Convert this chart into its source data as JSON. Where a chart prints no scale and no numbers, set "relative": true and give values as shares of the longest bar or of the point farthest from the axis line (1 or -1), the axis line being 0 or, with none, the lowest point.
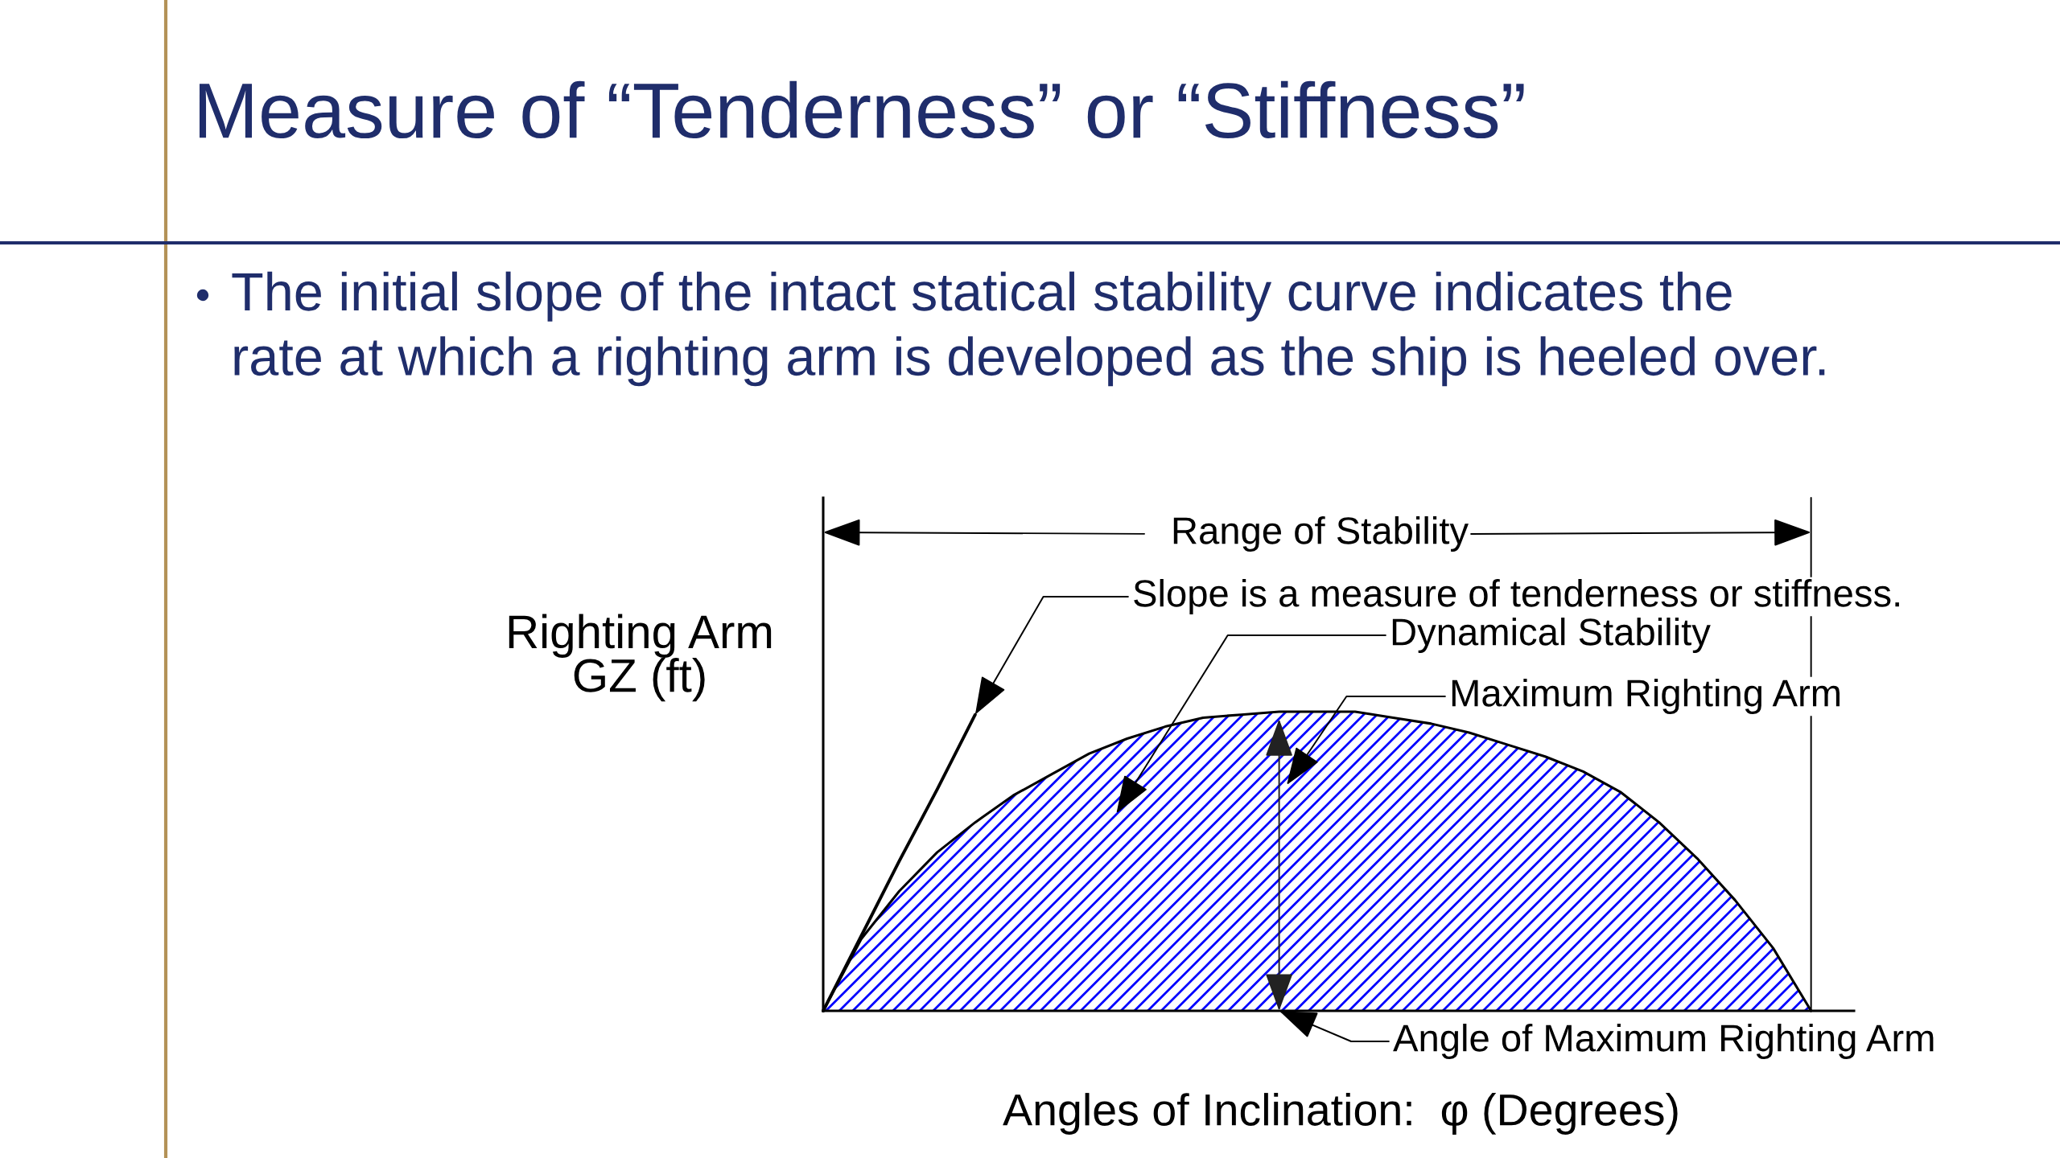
{
  "chart_data": {
    "type": "area",
    "title": "Measure of “Tenderness” or “Stiffness”",
    "subtitle": "The initial slope of the intact statical stability curve indicates the\nrate at which a righting arm is developed as the ship is heeled over.",
    "xlabel": "Angles of Inclination:  φ (Degrees)",
    "ylabel": "Righting Arm\nGZ (ft)",
    "relative": true,
    "categories": [
      null,
      null,
      null,
      null,
      null,
      null,
      null,
      null,
      null,
      null,
      null,
      null,
      null,
      null,
      null,
      null,
      null,
      null,
      null,
      null,
      null,
      null,
      null,
      null,
      null,
      null,
      null,
      null
    ],
    "series": [
      {
        "color": "#0000ff",
        "values": [
          0,
          0.24,
          0.4,
          0.53,
          0.63,
          0.72,
          0.79,
          0.86,
          0.91,
          0.95,
          0.98,
          0.99,
          1.0,
          1.0,
          1.0,
          0.98,
          0.96,
          0.93,
          0.89,
          0.85,
          0.8,
          0.73,
          0.63,
          0.51,
          0.37,
          0.21,
          0,
          null
        ]
      },
      {
        "type": "line",
        "color": "#000000",
        "values": [
          0,
          0.25,
          0.5,
          0.74,
          0.99,
          null,
          null,
          null,
          null,
          null,
          null,
          null,
          null,
          null,
          null,
          null,
          null,
          null,
          null,
          null,
          null,
          null,
          null,
          null,
          null,
          null,
          null,
          null
        ]
      }
    ],
    "annotations": [
      "Range of Stability",
      "Slope is a measure of tenderness or stiffness.",
      "Dynamical Stability",
      "Maximum Righting Arm",
      "Angle of Maximum Righting Arm"
    ]
  }
}
